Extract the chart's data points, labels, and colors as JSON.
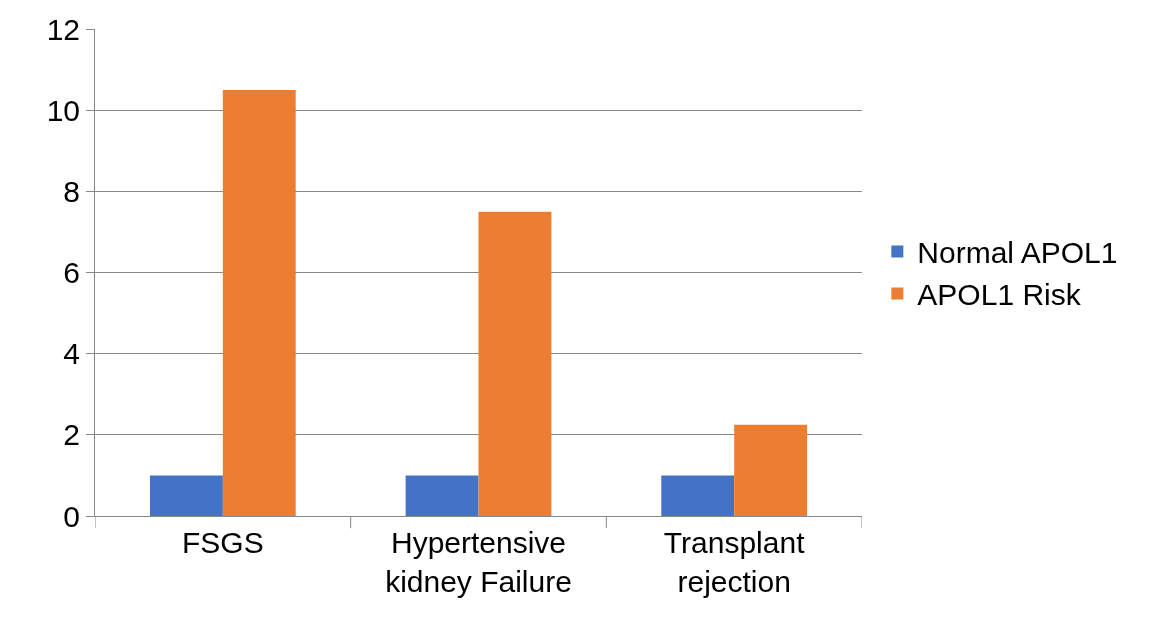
{
  "chart_data": {
    "type": "bar",
    "categories": [
      "FSGS",
      "Hypertensive kidney Failure",
      "Transplant rejection"
    ],
    "series": [
      {
        "name": "Normal APOL1",
        "color": "#4472c4",
        "values": [
          1,
          1,
          1
        ]
      },
      {
        "name": "APOL1 Risk",
        "color": "#ed7d31",
        "values": [
          10.5,
          7.5,
          2.25
        ]
      }
    ],
    "ylim": [
      0,
      12
    ],
    "yticks": [
      0,
      2,
      4,
      6,
      8,
      10,
      12
    ],
    "grid": "y",
    "legend": "right"
  }
}
